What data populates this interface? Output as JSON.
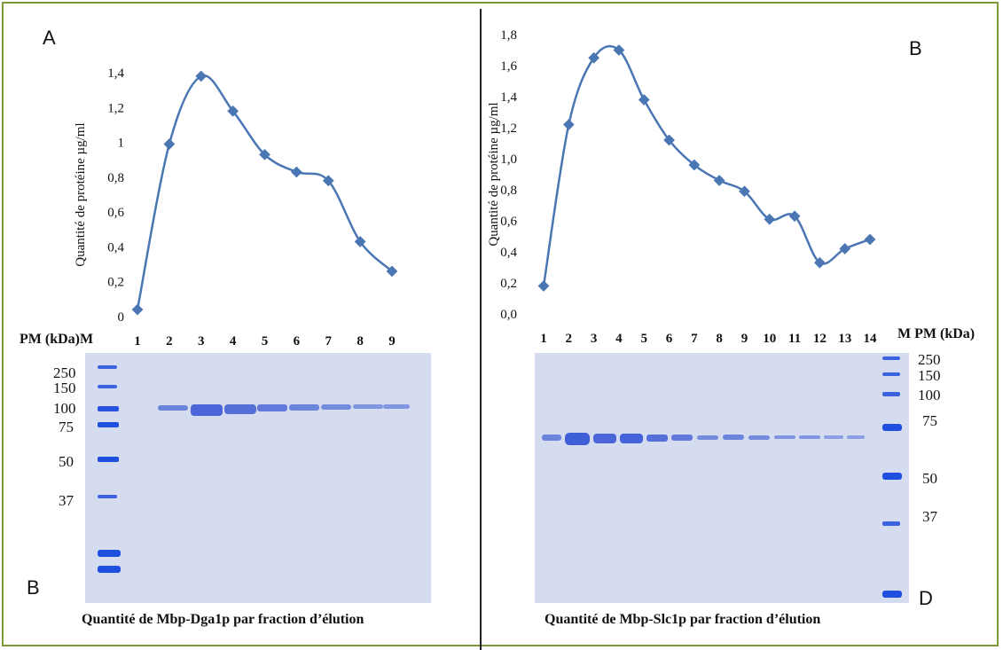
{
  "panels": {
    "left_top_letter": "A",
    "left_bottom_letter": "B",
    "right_top_letter": "B",
    "right_bottom_letter": "D"
  },
  "chart_data": [
    {
      "type": "line",
      "ylabel": "Quantité de protéine µg/ml",
      "x": [
        1,
        2,
        3,
        4,
        5,
        6,
        7,
        8,
        9
      ],
      "values": [
        0.04,
        0.99,
        1.38,
        1.18,
        0.93,
        0.83,
        0.78,
        0.43,
        0.26
      ],
      "ylim": [
        0,
        1.4
      ],
      "yticks": [
        "0",
        "0,2",
        "0,4",
        "0,6",
        "0,8",
        "1",
        "1,2",
        "1,4"
      ],
      "xticks": [
        "1",
        "2",
        "3",
        "4",
        "5",
        "6",
        "7",
        "8",
        "9"
      ],
      "color": "#4a76b4",
      "grid": false,
      "smooth": true
    },
    {
      "type": "line",
      "ylabel": "Quantité de protéine µg/ml",
      "x": [
        1,
        2,
        3,
        4,
        5,
        6,
        7,
        8,
        9,
        10,
        11,
        12,
        13,
        14
      ],
      "values": [
        0.18,
        1.22,
        1.65,
        1.7,
        1.38,
        1.12,
        0.96,
        0.86,
        0.79,
        0.61,
        0.63,
        0.33,
        0.42,
        0.48
      ],
      "ylim": [
        0,
        1.8
      ],
      "yticks": [
        "0,0",
        "0,2",
        "0,4",
        "0,6",
        "0,8",
        "1,0",
        "1,2",
        "1,4",
        "1,6",
        "1,8"
      ],
      "xticks": [
        "1",
        "2",
        "3",
        "4",
        "5",
        "6",
        "7",
        "8",
        "9",
        "10",
        "11",
        "12",
        "13",
        "14"
      ],
      "color": "#4a76b4",
      "grid": false,
      "smooth": true
    }
  ],
  "gel_left": {
    "header": "PM (kDa)",
    "marker_lane": "M",
    "mw": [
      "250",
      "150",
      "100",
      "75",
      "50",
      "37"
    ],
    "caption": "Quantité de Mbp-Dga1p par fraction d’élution"
  },
  "gel_right": {
    "marker_lane": "M",
    "header": "PM (kDa)",
    "mw": [
      "250",
      "150",
      "100",
      "75",
      "50",
      "37"
    ],
    "caption": "Quantité de Mbp-Slc1p par fraction d’élution"
  },
  "colors": {
    "gel_bg": "#d6dcf0",
    "band": "#5470d8",
    "marker": "#1f4fe0",
    "frame": "#7a9a3a"
  }
}
